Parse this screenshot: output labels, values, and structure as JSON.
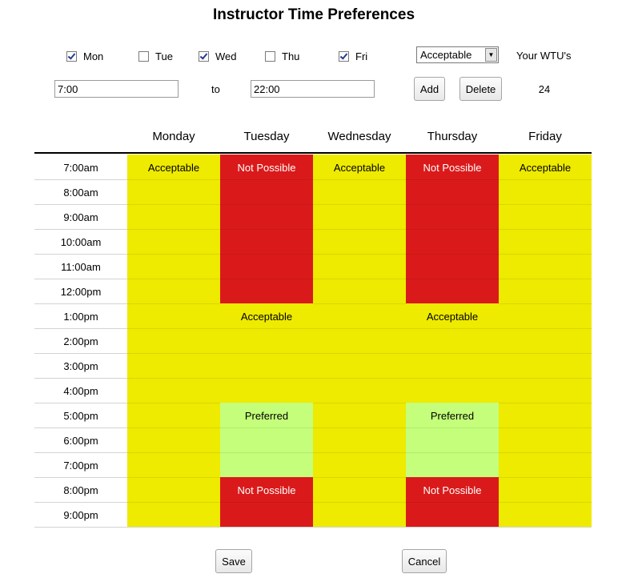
{
  "title": "Instructor Time Preferences",
  "days": [
    {
      "label": "Mon",
      "checked": true
    },
    {
      "label": "Tue",
      "checked": false
    },
    {
      "label": "Wed",
      "checked": true
    },
    {
      "label": "Thu",
      "checked": false
    },
    {
      "label": "Fri",
      "checked": true
    }
  ],
  "preference_select": {
    "value": "Acceptable"
  },
  "wtu": {
    "label": "Your WTU's",
    "value": "24"
  },
  "range": {
    "start": "7:00",
    "to_label": "to",
    "end": "22:00"
  },
  "buttons": {
    "add": "Add",
    "delete": "Delete",
    "save": "Save",
    "cancel": "Cancel"
  },
  "columns": [
    "Monday",
    "Tuesday",
    "Wednesday",
    "Thursday",
    "Friday"
  ],
  "times": [
    "7:00am",
    "8:00am",
    "9:00am",
    "10:00am",
    "11:00am",
    "12:00pm",
    "1:00pm",
    "2:00pm",
    "3:00pm",
    "4:00pm",
    "5:00pm",
    "6:00pm",
    "7:00pm",
    "8:00pm",
    "9:00pm"
  ],
  "colors": {
    "acceptable": "#eeea00",
    "not_possible": "#da1a1a",
    "preferred": "#c4fe7a"
  },
  "blocks": [
    {
      "day": 0,
      "start": 0,
      "end": 15,
      "type": "acceptable",
      "label": "Acceptable"
    },
    {
      "day": 2,
      "start": 0,
      "end": 15,
      "type": "acceptable",
      "label": "Acceptable"
    },
    {
      "day": 4,
      "start": 0,
      "end": 15,
      "type": "acceptable",
      "label": "Acceptable"
    },
    {
      "day": 1,
      "start": 0,
      "end": 6,
      "type": "not_possible",
      "label": "Not Possible"
    },
    {
      "day": 1,
      "start": 6,
      "end": 10,
      "type": "acceptable",
      "label": "Acceptable"
    },
    {
      "day": 1,
      "start": 10,
      "end": 13,
      "type": "preferred",
      "label": "Preferred"
    },
    {
      "day": 1,
      "start": 13,
      "end": 15,
      "type": "not_possible",
      "label": "Not Possible"
    },
    {
      "day": 3,
      "start": 0,
      "end": 6,
      "type": "not_possible",
      "label": "Not Possible"
    },
    {
      "day": 3,
      "start": 6,
      "end": 10,
      "type": "acceptable",
      "label": "Acceptable"
    },
    {
      "day": 3,
      "start": 10,
      "end": 13,
      "type": "preferred",
      "label": "Preferred"
    },
    {
      "day": 3,
      "start": 13,
      "end": 15,
      "type": "not_possible",
      "label": "Not Possible"
    }
  ]
}
